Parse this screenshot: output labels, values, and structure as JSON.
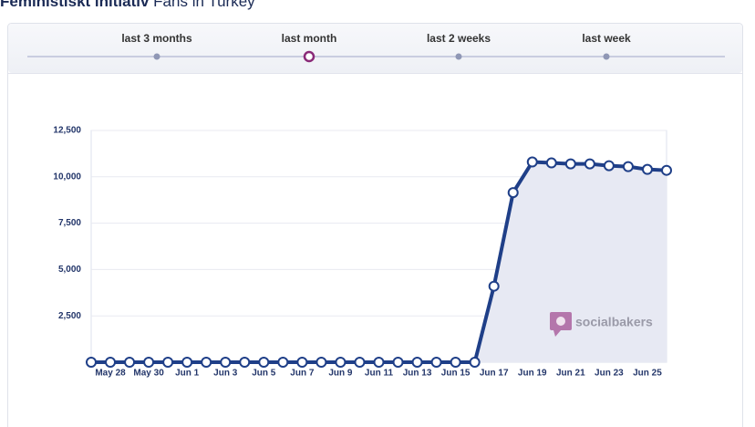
{
  "header": {
    "title_bold": "Feministiskt initiativ",
    "title_rest": "Fans in Turkey"
  },
  "tabs": [
    {
      "label": "last 3 months",
      "active": false
    },
    {
      "label": "last month",
      "active": true
    },
    {
      "label": "last 2 weeks",
      "active": false
    },
    {
      "label": "last week",
      "active": false
    }
  ],
  "chart_data": {
    "type": "area",
    "color": "#1f3f88",
    "fill": "#e7e9f3",
    "grid": true,
    "watermark": "socialbakers",
    "categories": [
      null,
      "May 28",
      null,
      "May 30",
      null,
      "Jun 1",
      null,
      "Jun 3",
      null,
      "Jun 5",
      null,
      "Jun 7",
      null,
      "Jun 9",
      null,
      "Jun 11",
      null,
      "Jun 13",
      null,
      "Jun 15",
      null,
      "Jun 17",
      null,
      "Jun 19",
      null,
      "Jun 21",
      null,
      "Jun 23",
      null,
      "Jun 25",
      null
    ],
    "values": [
      0,
      0,
      0,
      0,
      0,
      0,
      0,
      0,
      0,
      0,
      0,
      0,
      0,
      0,
      0,
      0,
      0,
      0,
      0,
      0,
      0,
      4100,
      9150,
      10800,
      10750,
      10700,
      10700,
      10600,
      10550,
      10400,
      10350
    ],
    "ylim": [
      0,
      12500
    ],
    "yticks": [
      {
        "value": 2500,
        "label": "2,500"
      },
      {
        "value": 5000,
        "label": "5,000"
      },
      {
        "value": 7500,
        "label": "7,500"
      },
      {
        "value": 10000,
        "label": "10,000"
      },
      {
        "value": 12500,
        "label": "12,500"
      }
    ]
  }
}
